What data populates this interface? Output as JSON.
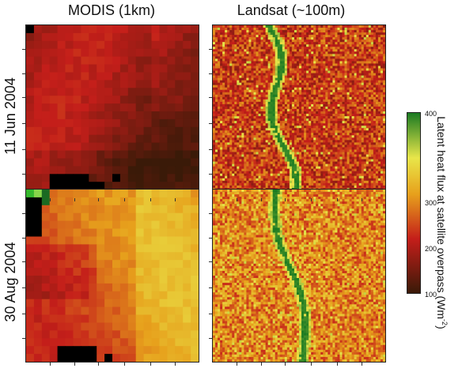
{
  "columns": [
    {
      "title": "MODIS (1km)"
    },
    {
      "title": "Landsat (~100m)"
    }
  ],
  "rows": [
    {
      "title": "11 Jun 2004"
    },
    {
      "title": "30 Aug 2004"
    }
  ],
  "colorbar": {
    "title_main": "Latent heat flux at satellite overpass (Wm",
    "title_sup": "-2",
    "title_end": ")",
    "ticks": [
      "400",
      "300",
      "200",
      "100"
    ],
    "colors": {
      "low": "#3a1a08",
      "mid_low": "#c41e1a",
      "mid": "#e7a11c",
      "mid_high": "#e8e64a",
      "high": "#1a7a22"
    }
  }
}
